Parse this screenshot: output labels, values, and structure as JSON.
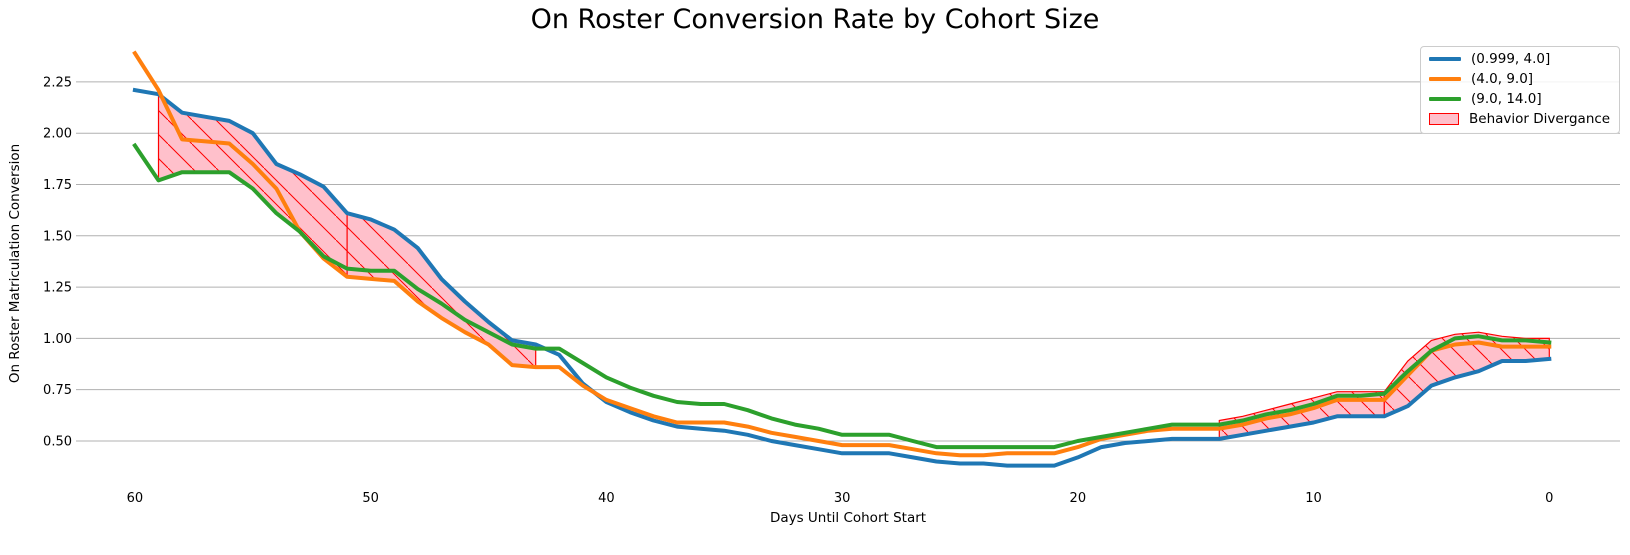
{
  "chart_data": {
    "type": "line",
    "title": "On Roster Conversion Rate by Cohort Size",
    "xlabel": "Days Until Cohort Start",
    "ylabel": "On Roster Matriculation Conversion",
    "xlim": [
      62.5,
      -3
    ],
    "ylim": [
      0.3,
      2.43
    ],
    "x_inverted": true,
    "x_ticks": [
      60,
      50,
      40,
      30,
      20,
      10,
      0
    ],
    "y_ticks": [
      0.5,
      0.75,
      1.0,
      1.25,
      1.5,
      1.75,
      2.0,
      2.25
    ],
    "y_tick_labels": [
      "0.50",
      "0.75",
      "1.00",
      "1.25",
      "1.50",
      "1.75",
      "2.00",
      "2.25"
    ],
    "grid": "horizontal",
    "legend_position": "top-right",
    "x": [
      60,
      59,
      58,
      57,
      56,
      55,
      54,
      53,
      52,
      51,
      50,
      49,
      48,
      47,
      46,
      45,
      44,
      43,
      42,
      41,
      40,
      39,
      38,
      37,
      36,
      35,
      34,
      33,
      32,
      31,
      30,
      29,
      28,
      27,
      26,
      25,
      24,
      23,
      22,
      21,
      20,
      19,
      18,
      17,
      16,
      15,
      14,
      13,
      12,
      11,
      10,
      9,
      8,
      7,
      6,
      5,
      4,
      3,
      2,
      1,
      0
    ],
    "series": [
      {
        "name": "(0.999, 4.0]",
        "color": "#1f77b4",
        "values": [
          2.21,
          2.19,
          2.1,
          2.08,
          2.06,
          2.0,
          1.85,
          1.8,
          1.74,
          1.61,
          1.58,
          1.53,
          1.44,
          1.29,
          1.18,
          1.08,
          0.99,
          0.97,
          0.92,
          0.78,
          0.69,
          0.64,
          0.6,
          0.57,
          0.56,
          0.55,
          0.53,
          0.5,
          0.48,
          0.46,
          0.44,
          0.44,
          0.44,
          0.42,
          0.4,
          0.39,
          0.39,
          0.38,
          0.38,
          0.38,
          0.42,
          0.47,
          0.49,
          0.5,
          0.51,
          0.51,
          0.51,
          0.53,
          0.55,
          0.57,
          0.59,
          0.62,
          0.62,
          0.62,
          0.67,
          0.77,
          0.81,
          0.84,
          0.89,
          0.89,
          0.9
        ]
      },
      {
        "name": "(4.0, 9.0]",
        "color": "#ff7f0e",
        "values": [
          2.39,
          2.21,
          1.97,
          1.96,
          1.95,
          1.85,
          1.73,
          1.52,
          1.39,
          1.3,
          1.29,
          1.28,
          1.18,
          1.1,
          1.03,
          0.97,
          0.87,
          0.86,
          0.86,
          0.77,
          0.7,
          0.66,
          0.62,
          0.59,
          0.59,
          0.59,
          0.57,
          0.54,
          0.52,
          0.5,
          0.48,
          0.48,
          0.48,
          0.46,
          0.44,
          0.43,
          0.43,
          0.44,
          0.44,
          0.44,
          0.47,
          0.51,
          0.53,
          0.55,
          0.56,
          0.56,
          0.56,
          0.58,
          0.61,
          0.63,
          0.66,
          0.7,
          0.7,
          0.7,
          0.82,
          0.94,
          0.97,
          0.98,
          0.96,
          0.96,
          0.96
        ]
      },
      {
        "name": "(9.0, 14.0]",
        "color": "#2ca02c",
        "values": [
          1.94,
          1.77,
          1.81,
          1.81,
          1.81,
          1.73,
          1.61,
          1.52,
          1.4,
          1.34,
          1.33,
          1.33,
          1.24,
          1.17,
          1.09,
          1.03,
          0.97,
          0.95,
          0.95,
          0.88,
          0.81,
          0.76,
          0.72,
          0.69,
          0.68,
          0.68,
          0.65,
          0.61,
          0.58,
          0.56,
          0.53,
          0.53,
          0.53,
          0.5,
          0.47,
          0.47,
          0.47,
          0.47,
          0.47,
          0.47,
          0.5,
          0.52,
          0.54,
          0.56,
          0.58,
          0.58,
          0.58,
          0.6,
          0.63,
          0.65,
          0.68,
          0.72,
          0.72,
          0.73,
          0.84,
          0.94,
          1.0,
          1.01,
          0.99,
          0.99,
          0.98
        ]
      }
    ],
    "fill": {
      "name": "Behavior Divergance",
      "face_color": "#ffc0cb",
      "edge_color": "#ff0000",
      "ranges": [
        {
          "from": 59,
          "to": 51,
          "lower": [
            1.77,
            1.81,
            1.81,
            1.81,
            1.73,
            1.61,
            1.52,
            1.39,
            1.3
          ],
          "upper": [
            2.19,
            2.1,
            2.08,
            2.06,
            2.0,
            1.85,
            1.8,
            1.74,
            1.61
          ]
        },
        {
          "from": 51,
          "to": 43,
          "lower": [
            1.3,
            1.29,
            1.28,
            1.18,
            1.1,
            1.03,
            0.97,
            0.87,
            0.86
          ],
          "upper": [
            1.61,
            1.58,
            1.53,
            1.44,
            1.29,
            1.18,
            1.08,
            0.99,
            0.97
          ]
        },
        {
          "from": 14,
          "to": 7,
          "lower": [
            0.51,
            0.53,
            0.55,
            0.57,
            0.59,
            0.62,
            0.62,
            0.62
          ],
          "upper": [
            0.6,
            0.62,
            0.65,
            0.68,
            0.71,
            0.74,
            0.74,
            0.74
          ]
        },
        {
          "from": 7,
          "to": 0,
          "lower": [
            0.62,
            0.67,
            0.77,
            0.81,
            0.84,
            0.89,
            0.89,
            0.9
          ],
          "upper": [
            0.74,
            0.89,
            0.99,
            1.02,
            1.03,
            1.01,
            1.0,
            1.0
          ]
        }
      ]
    }
  }
}
